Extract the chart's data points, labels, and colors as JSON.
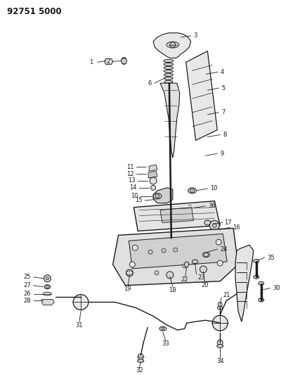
{
  "title": "92751 5000",
  "bg_color": "#ffffff",
  "line_color": "#1a1a1a",
  "fig_width": 4.0,
  "fig_height": 5.33,
  "dpi": 100
}
